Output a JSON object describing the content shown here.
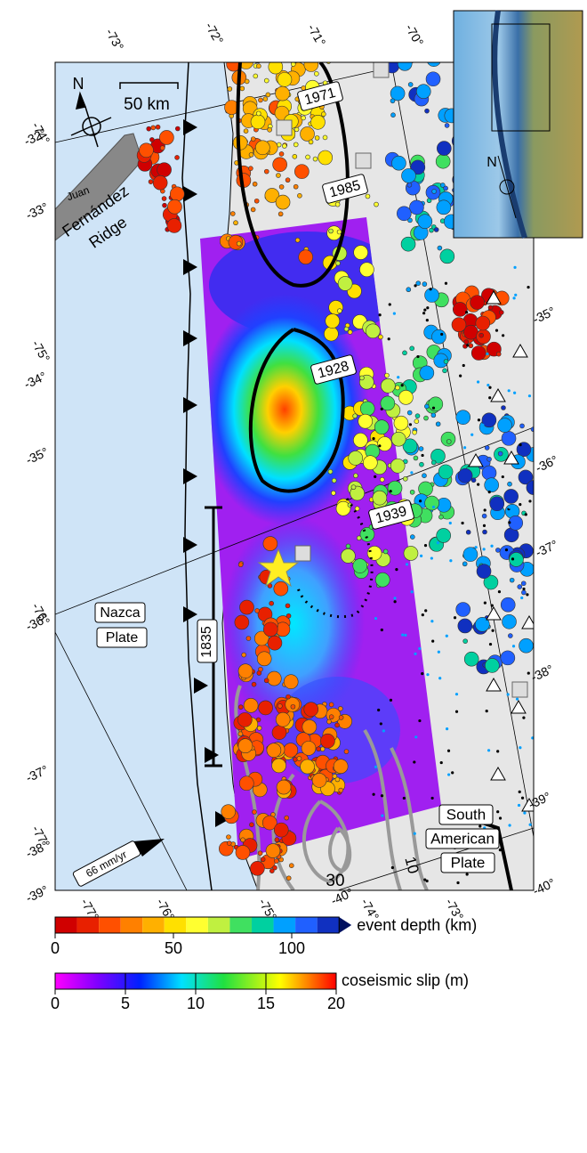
{
  "map": {
    "lon_top": [
      "-73°",
      "-72°",
      "-71°",
      "-70°"
    ],
    "lat_left": [
      "-32°",
      "-33°",
      "-34°",
      "-35°",
      "-36°",
      "-37°",
      "-38°",
      "-39°"
    ],
    "lon_left": [
      "-74°",
      "-75°",
      "-76°",
      "-77°"
    ],
    "lat_right": [
      "-35°",
      "-36°",
      "-37°",
      "-38°",
      "-39°",
      "-40°"
    ],
    "lon_bottom": [
      "-77°",
      "-76°",
      "-75°",
      "-74°",
      "-73°"
    ],
    "lat_bottom": "-40°",
    "scale_bar": "50 km",
    "north": "N",
    "inset_north": "N",
    "ridge": [
      "Juan",
      "Fernández",
      "Ridge"
    ],
    "earthquakes": [
      "1971",
      "1985",
      "1928",
      "1939",
      "1835"
    ],
    "convergence": "66 mm/yr",
    "nazca": [
      "Nazca",
      "Plate"
    ],
    "south_american": [
      "South",
      "American",
      "Plate"
    ],
    "contours": [
      "30",
      "10"
    ]
  },
  "depth_scale": {
    "label": "event depth (km)",
    "ticks": [
      0,
      50,
      100
    ],
    "range": [
      0,
      120
    ]
  },
  "slip_scale": {
    "label": "coseismic slip (m)",
    "ticks": [
      0,
      5,
      10,
      15,
      20
    ],
    "range": [
      0,
      20
    ]
  }
}
